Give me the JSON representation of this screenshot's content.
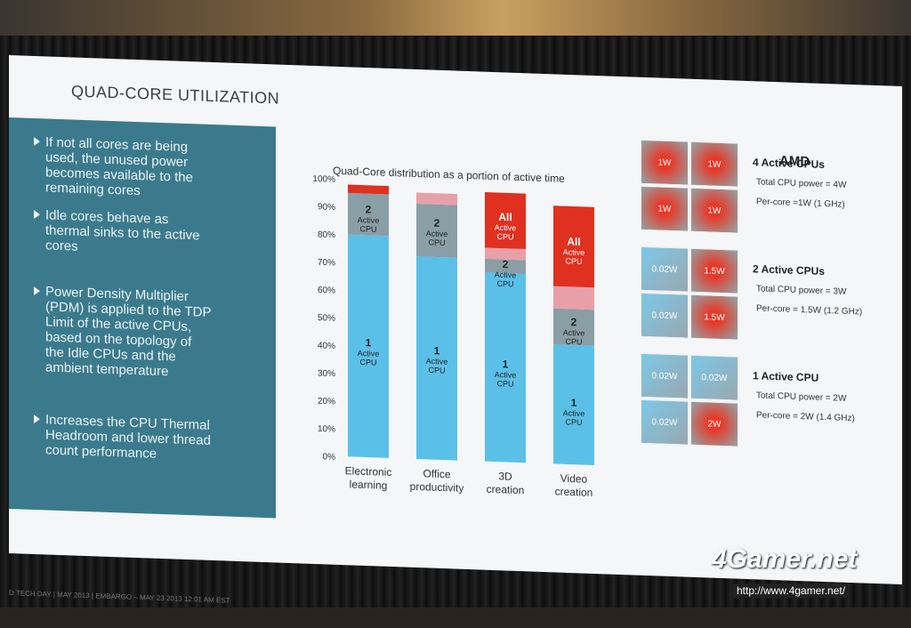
{
  "slide": {
    "title": "QUAD-CORE UTILIZATION",
    "logo": "AMD",
    "footer": "D TECH DAY  |  MAY 2013  |  EMBARGO – MAY 23 2013 12:01 AM EST",
    "bullets": [
      [
        "If not all cores are being",
        "used, the unused power",
        "becomes available to the",
        "remaining cores"
      ],
      [
        "Idle cores behave as",
        "thermal sinks to the active",
        "cores"
      ],
      [
        "Power Density Multiplier",
        "(PDM) is applied to the TDP",
        "Limit of the active CPUs,",
        "based on the topology of",
        "the Idle CPUs and the",
        "ambient temperature"
      ],
      [
        "Increases the CPU Thermal",
        "Headroom and lower thread",
        "count performance"
      ]
    ]
  },
  "chart_data": {
    "type": "bar",
    "title": "Quad-Core distribution as a portion of active time",
    "categories": [
      [
        "Electronic",
        "learning"
      ],
      [
        "Office",
        "productivity"
      ],
      [
        "3D",
        "creation"
      ],
      [
        "Video",
        "creation"
      ]
    ],
    "yticks": [
      "0%",
      "10%",
      "20%",
      "30%",
      "40%",
      "50%",
      "60%",
      "70%",
      "80%",
      "90%",
      "100%"
    ],
    "ylim": [
      0,
      100
    ],
    "series": [
      {
        "name": "1 Active CPU",
        "color": "#5bc0e8",
        "values": [
          80,
          73,
          68,
          43
        ]
      },
      {
        "name": "2 Active CPU",
        "color": "#8a9ea6",
        "values": [
          15,
          19,
          5,
          13
        ]
      },
      {
        "name": "3 Active CPU",
        "color": "#e8a0a8",
        "values": [
          0,
          4,
          4,
          8
        ]
      },
      {
        "name": "All Active CPU",
        "color": "#e03020",
        "values": [
          3,
          0,
          20,
          29
        ]
      }
    ],
    "bar_labels": [
      [
        {
          "n": "1",
          "t": [
            "Active",
            "CPU"
          ],
          "y": 40
        },
        {
          "n": "2",
          "t": [
            "Active",
            "CPU"
          ],
          "y": 88
        }
      ],
      [
        {
          "n": "1",
          "t": [
            "Active",
            "CPU"
          ],
          "y": 38
        },
        {
          "n": "2",
          "t": [
            "Active",
            "CPU"
          ],
          "y": 84
        }
      ],
      [
        {
          "n": "1",
          "t": [
            "Active",
            "CPU"
          ],
          "y": 34
        },
        {
          "n": "2",
          "t": [
            "Active",
            "CPU"
          ],
          "y": 70
        },
        {
          "n": "All",
          "t": [
            "Active",
            "CPU"
          ],
          "y": 87
        }
      ],
      [
        {
          "n": "1",
          "t": [
            "Active",
            "CPU"
          ],
          "y": 21
        },
        {
          "n": "2",
          "t": [
            "Active",
            "CPU"
          ],
          "y": 50
        },
        {
          "n": "All",
          "t": [
            "Active",
            "CPU"
          ],
          "y": 79
        }
      ]
    ]
  },
  "cpu_configs": [
    {
      "title": "4 Active CPUs",
      "total": "Total CPU power = 4W",
      "per_core": "Per-core =1W (1 GHz)",
      "cores": [
        "1W",
        "1W",
        "1W",
        "1W"
      ]
    },
    {
      "title": "2 Active CPUs",
      "total": "Total CPU power = 3W",
      "per_core": "Per-core = 1.5W (1.2 GHz)",
      "cores": [
        "0.02W",
        "1.5W",
        "0.02W",
        "1.5W"
      ]
    },
    {
      "title": "1 Active CPU",
      "total": "Total CPU power = 2W",
      "per_core": "Per-core = 2W (1.4 GHz)",
      "cores": [
        "0.02W",
        "0.02W",
        "0.02W",
        "2W"
      ]
    }
  ],
  "watermark": {
    "brand": "4Gamer.net",
    "url": "http://www.4gamer.net/"
  }
}
